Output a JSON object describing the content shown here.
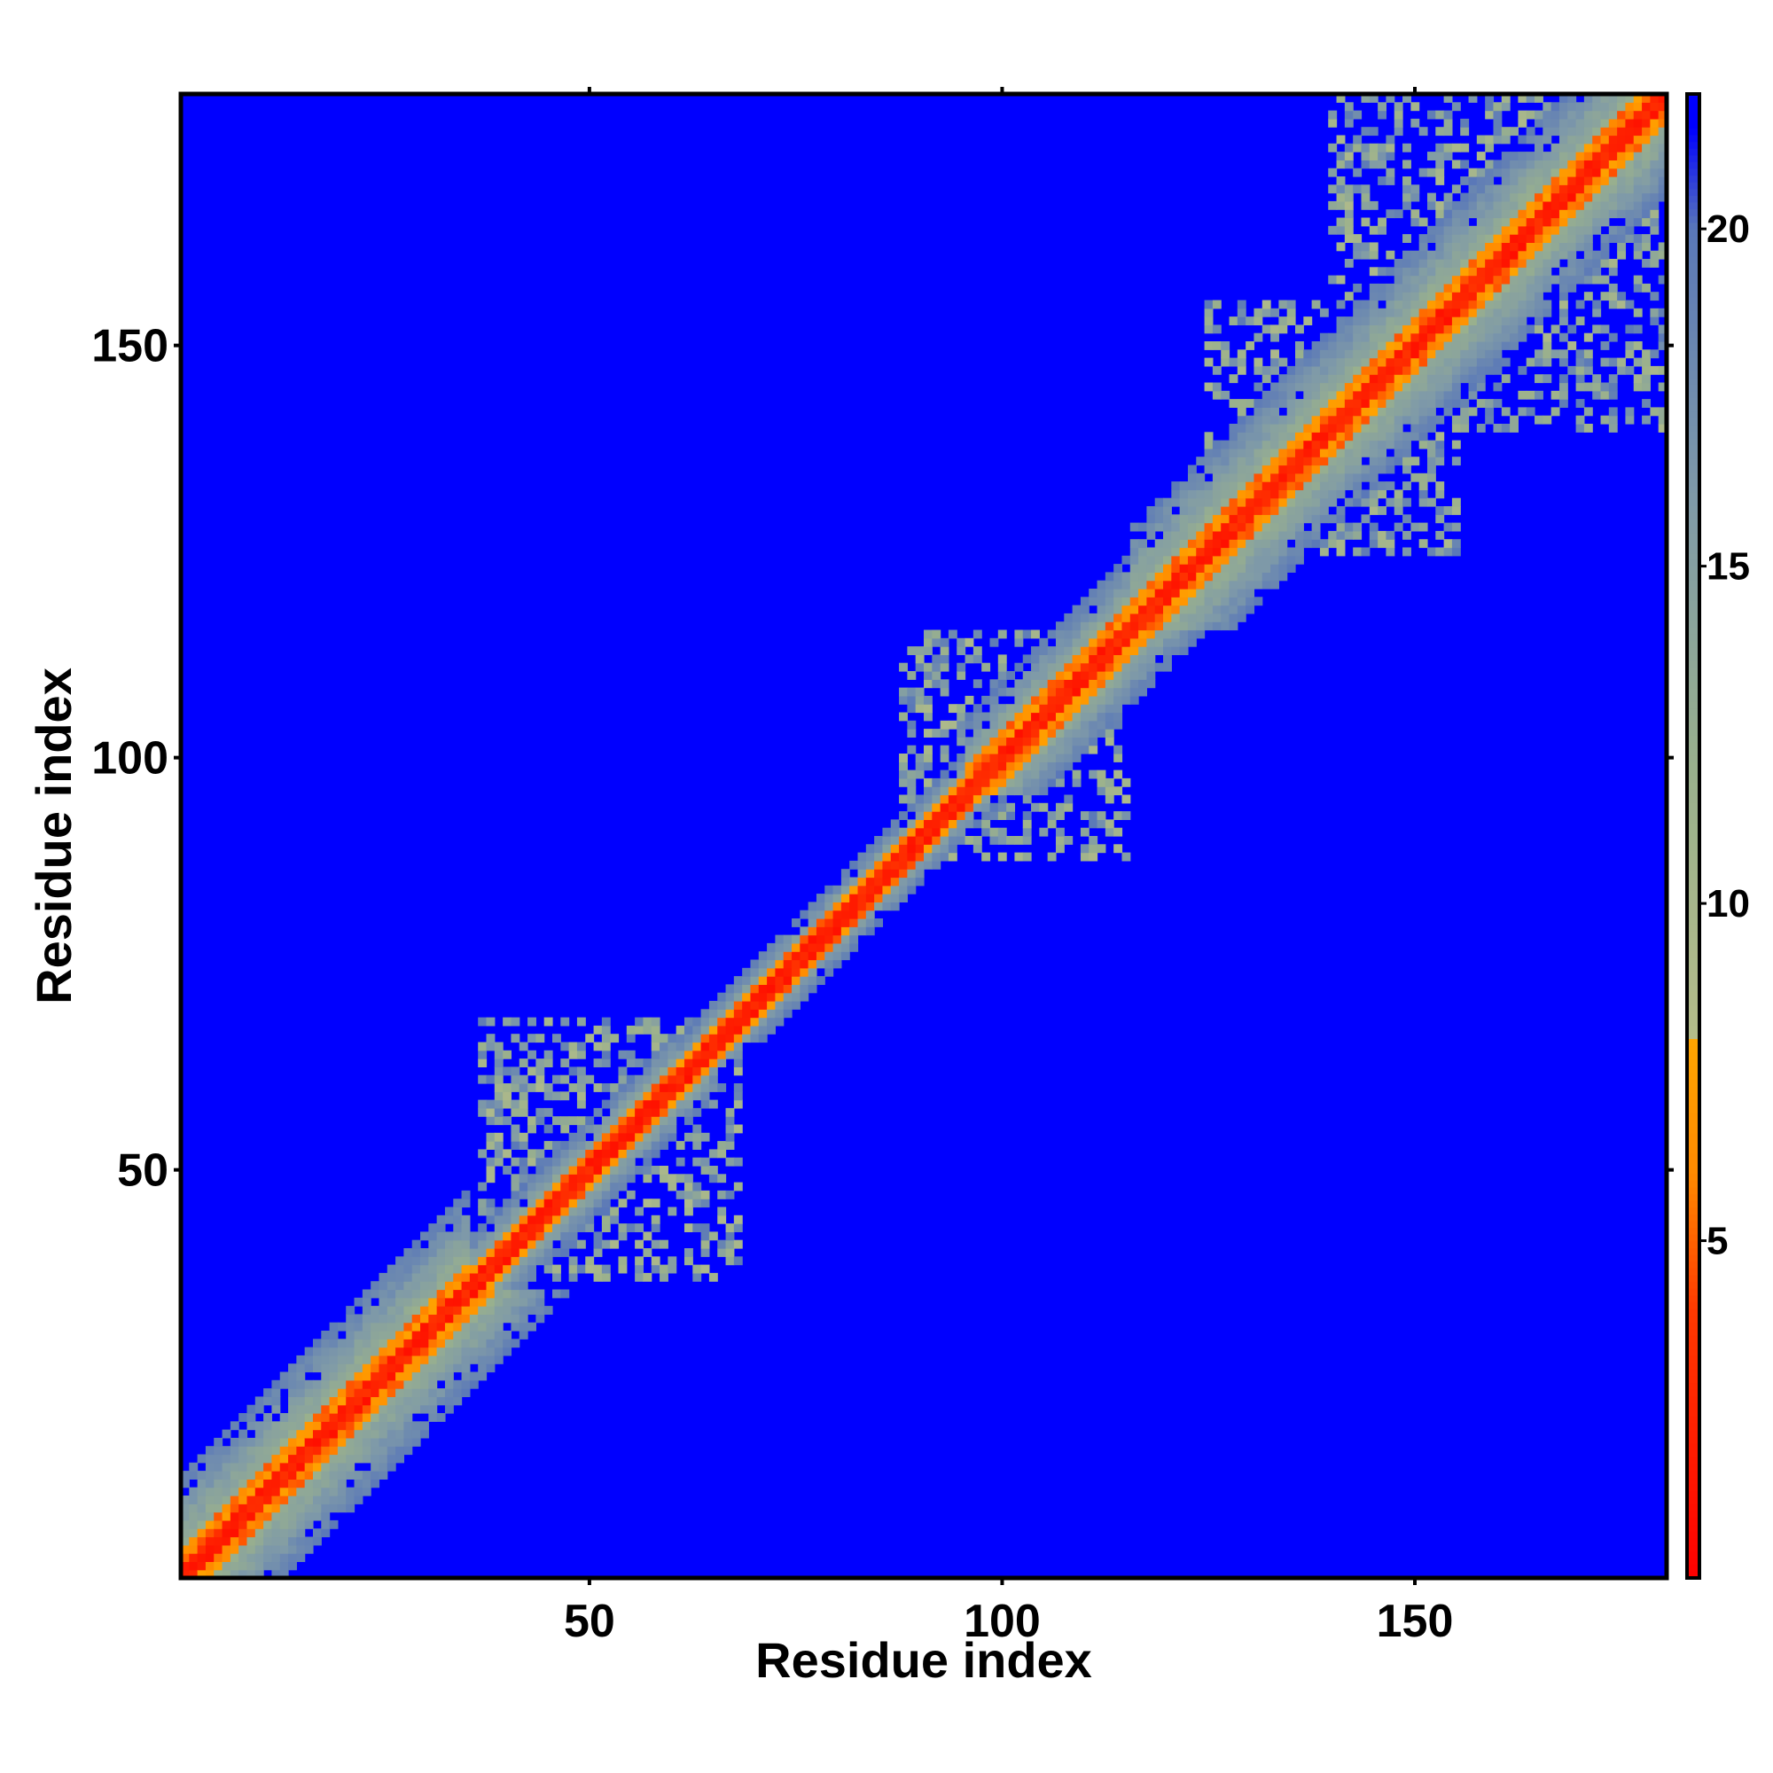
{
  "chart_data": {
    "type": "heatmap",
    "title": "",
    "xlabel": "Residue index",
    "ylabel": "Residue index",
    "xlim": [
      0.5,
      180.5
    ],
    "ylim": [
      0.5,
      180.5
    ],
    "n_residues": 180,
    "x_ticks": [
      50,
      100,
      150
    ],
    "y_ticks": [
      50,
      100,
      150
    ],
    "colorbar": {
      "range": [
        0,
        22
      ],
      "ticks": [
        5,
        10,
        15,
        20
      ],
      "stops": [
        {
          "value": 0,
          "color": "#ff0000"
        },
        {
          "value": 4,
          "color": "#ff3a00"
        },
        {
          "value": 6,
          "color": "#ff8a00"
        },
        {
          "value": 8,
          "color": "#ffa500"
        },
        {
          "value": 8.01,
          "color": "#b4bc8a"
        },
        {
          "value": 12,
          "color": "#99b08d"
        },
        {
          "value": 16,
          "color": "#7f9aa8"
        },
        {
          "value": 20,
          "color": "#5a78b8"
        },
        {
          "value": 21.5,
          "color": "#0000ff"
        }
      ]
    },
    "background_value": 22,
    "background_color": "#0000ff",
    "diagonal_band_halfwidths": [
      {
        "from": 1,
        "to": 35,
        "red": 1,
        "orange": 3,
        "khaki": 12
      },
      {
        "from": 35,
        "to": 60,
        "red": 1,
        "orange": 2,
        "khaki": 6
      },
      {
        "from": 60,
        "to": 95,
        "red": 1,
        "orange": 2,
        "khaki": 5
      },
      {
        "from": 95,
        "to": 115,
        "red": 1,
        "orange": 3,
        "khaki": 9
      },
      {
        "from": 115,
        "to": 180,
        "red": 1,
        "orange": 3,
        "khaki": 12
      }
    ],
    "scattered_contact_regions": [
      {
        "x": [
          37,
          66
        ],
        "y": [
          38,
          68
        ]
      },
      {
        "x": [
          93,
          115
        ],
        "y": [
          88,
          114
        ]
      },
      {
        "x": [
          125,
          155
        ],
        "y": [
          125,
          150
        ]
      },
      {
        "x": [
          140,
          180
        ],
        "y": [
          140,
          180
        ]
      }
    ]
  }
}
